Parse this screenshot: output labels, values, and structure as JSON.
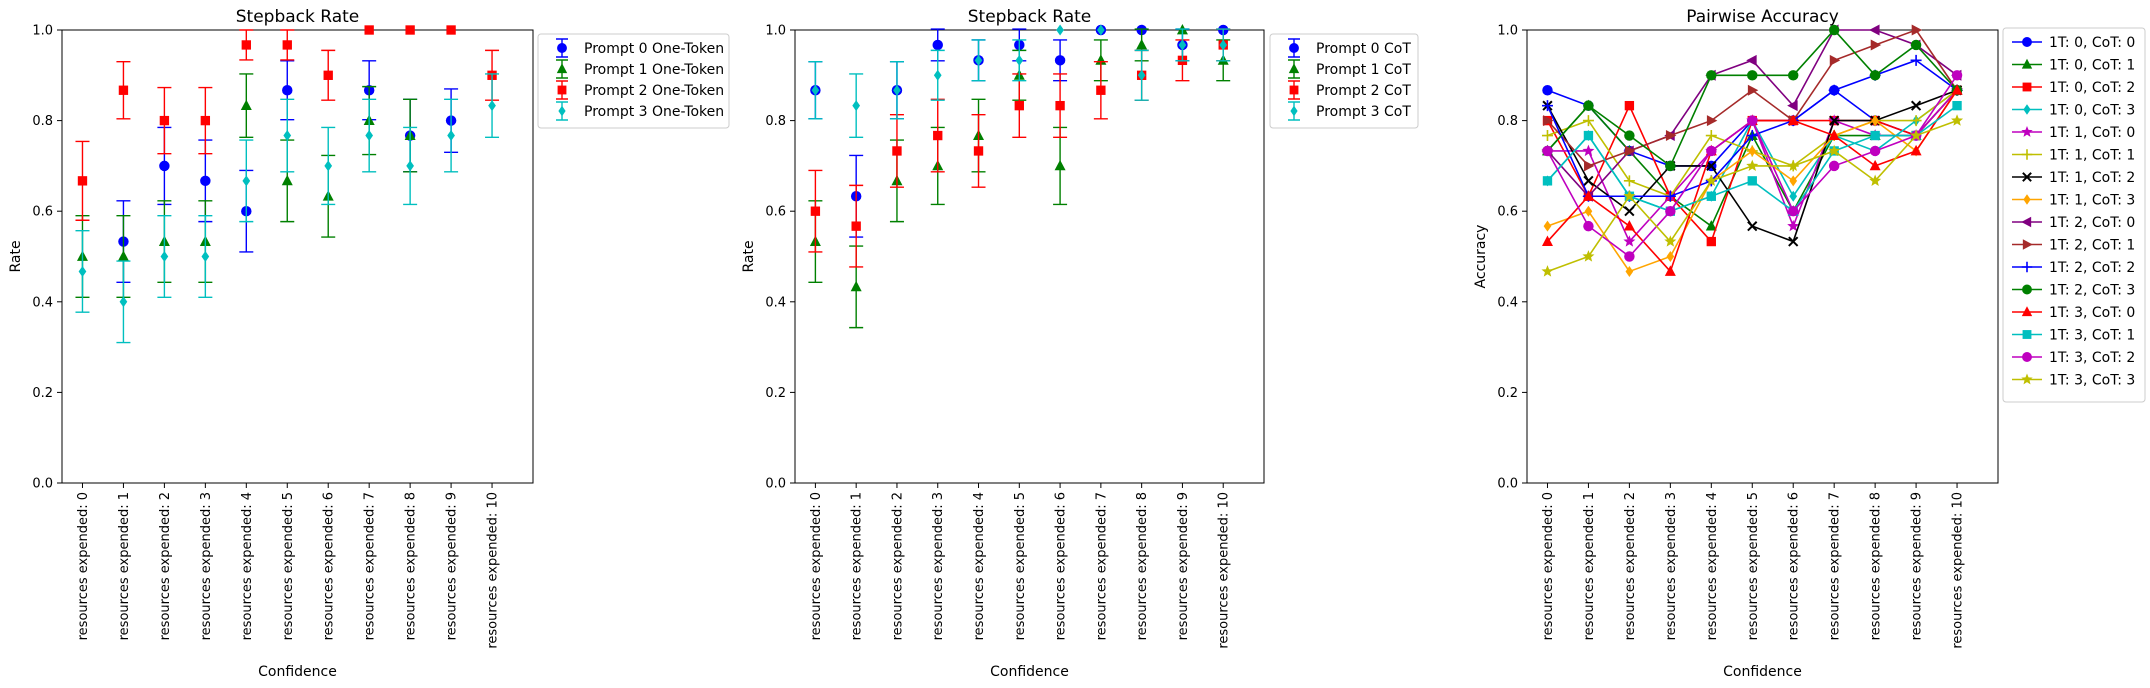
{
  "figure": {
    "background": "#ffffff"
  },
  "chart_data": [
    {
      "type": "scatter",
      "title": "Stepback Rate",
      "xlabel": "Confidence",
      "ylabel": "Rate",
      "ylim": [
        0,
        1
      ],
      "yticks": [
        "0.0",
        "0.2",
        "0.4",
        "0.6",
        "0.8",
        "1.0"
      ],
      "categories": [
        "resources expended: 0",
        "resources expended: 1",
        "resources expended: 2",
        "resources expended: 3",
        "resources expended: 4",
        "resources expended: 5",
        "resources expended: 6",
        "resources expended: 7",
        "resources expended: 8",
        "resources expended: 9",
        "resources expended: 10"
      ],
      "legend_position": "outside-right",
      "series": [
        {
          "name": "Prompt 0 One-Token",
          "color": "#0000ff",
          "marker": "circle",
          "values": [
            null,
            0.533,
            0.7,
            0.667,
            0.6,
            0.867,
            null,
            0.867,
            0.767,
            0.8,
            null
          ],
          "errors": [
            null,
            0.09,
            0.085,
            0.09,
            0.09,
            0.065,
            null,
            0.065,
            0.08,
            0.07,
            null
          ]
        },
        {
          "name": "Prompt 1 One-Token",
          "color": "#008000",
          "marker": "triangle",
          "values": [
            0.5,
            0.5,
            0.533,
            0.533,
            0.833,
            0.667,
            0.633,
            0.8,
            0.767,
            null,
            null
          ],
          "errors": [
            0.09,
            0.09,
            0.09,
            0.09,
            0.07,
            0.09,
            0.09,
            0.075,
            0.08,
            null,
            null
          ]
        },
        {
          "name": "Prompt 2 One-Token",
          "color": "#ff0000",
          "marker": "square",
          "values": [
            0.667,
            0.867,
            0.8,
            0.8,
            0.967,
            0.967,
            0.9,
            1.0,
            1.0,
            1.0,
            0.9
          ],
          "errors": [
            0.087,
            0.063,
            0.073,
            0.073,
            0.033,
            0.033,
            0.055,
            0,
            0,
            0,
            0.055
          ]
        },
        {
          "name": "Prompt 3 One-Token",
          "color": "#00bfbf",
          "marker": "diamond",
          "values": [
            0.467,
            0.4,
            0.5,
            0.5,
            0.667,
            0.767,
            0.7,
            0.767,
            0.7,
            0.767,
            0.833
          ],
          "errors": [
            0.09,
            0.09,
            0.09,
            0.09,
            0.09,
            0.08,
            0.085,
            0.08,
            0.085,
            0.08,
            0.07
          ]
        }
      ]
    },
    {
      "type": "scatter",
      "title": "Stepback Rate",
      "xlabel": "Confidence",
      "ylabel": "Rate",
      "ylim": [
        0,
        1
      ],
      "yticks": [
        "0.0",
        "0.2",
        "0.4",
        "0.6",
        "0.8",
        "1.0"
      ],
      "categories": [
        "resources expended: 0",
        "resources expended: 1",
        "resources expended: 2",
        "resources expended: 3",
        "resources expended: 4",
        "resources expended: 5",
        "resources expended: 6",
        "resources expended: 7",
        "resources expended: 8",
        "resources expended: 9",
        "resources expended: 10"
      ],
      "legend_position": "outside-right",
      "series": [
        {
          "name": "Prompt 0 CoT",
          "color": "#0000ff",
          "marker": "circle",
          "values": [
            0.867,
            0.633,
            0.867,
            0.967,
            0.933,
            0.967,
            0.933,
            1.0,
            1.0,
            0.967,
            1.0
          ],
          "errors": [
            0.063,
            0.09,
            0.063,
            0.035,
            0.045,
            0.035,
            0.045,
            0,
            0,
            0.035,
            0
          ]
        },
        {
          "name": "Prompt 1 CoT",
          "color": "#008000",
          "marker": "triangle",
          "values": [
            0.533,
            0.433,
            0.667,
            0.7,
            0.767,
            0.9,
            0.7,
            0.933,
            0.967,
            1.0,
            0.933
          ],
          "errors": [
            0.09,
            0.09,
            0.09,
            0.085,
            0.08,
            0.055,
            0.085,
            0.045,
            0.035,
            0,
            0.045
          ]
        },
        {
          "name": "Prompt 2 CoT",
          "color": "#ff0000",
          "marker": "square",
          "values": [
            0.6,
            0.567,
            0.733,
            0.767,
            0.733,
            0.833,
            0.833,
            0.867,
            0.9,
            0.933,
            0.967
          ],
          "errors": [
            0.09,
            0.09,
            0.08,
            0.08,
            0.08,
            0.07,
            0.07,
            0.063,
            0.055,
            0.045,
            0.035
          ]
        },
        {
          "name": "Prompt 3 CoT",
          "color": "#00bfbf",
          "marker": "diamond",
          "values": [
            0.867,
            0.833,
            0.867,
            0.9,
            0.933,
            0.933,
            1.0,
            1.0,
            0.9,
            0.967,
            0.967
          ],
          "errors": [
            0.063,
            0.07,
            0.063,
            0.055,
            0.045,
            0.045,
            0,
            0,
            0.055,
            0.035,
            0.035
          ]
        }
      ]
    },
    {
      "type": "line",
      "title": "Pairwise Accuracy",
      "xlabel": "Confidence",
      "ylabel": "Accuracy",
      "ylim": [
        0,
        1
      ],
      "yticks": [
        "0.0",
        "0.2",
        "0.4",
        "0.6",
        "0.8",
        "1.0"
      ],
      "categories": [
        "resources expended: 0",
        "resources expended: 1",
        "resources expended: 2",
        "resources expended: 3",
        "resources expended: 4",
        "resources expended: 5",
        "resources expended: 6",
        "resources expended: 7",
        "resources expended: 8",
        "resources expended: 9",
        "resources expended: 10"
      ],
      "legend_position": "outside-right",
      "series": [
        {
          "name": "1T: 0, CoT: 0",
          "color": "#0000ff",
          "marker": "circle",
          "values": [
            0.867,
            0.833,
            0.733,
            0.7,
            0.7,
            0.8,
            0.8,
            0.867,
            0.8,
            0.767,
            0.867
          ]
        },
        {
          "name": "1T: 0, CoT: 1",
          "color": "#008000",
          "marker": "triangle",
          "values": [
            0.733,
            0.833,
            0.733,
            0.633,
            0.567,
            0.767,
            0.6,
            0.767,
            0.767,
            0.767,
            0.867
          ]
        },
        {
          "name": "1T: 0, CoT: 2",
          "color": "#ff0000",
          "marker": "square",
          "values": [
            0.8,
            0.633,
            0.833,
            0.633,
            0.533,
            0.8,
            0.8,
            0.8,
            0.8,
            0.767,
            0.867
          ]
        },
        {
          "name": "1T: 0, CoT: 3",
          "color": "#00bfbf",
          "marker": "diamond",
          "values": [
            0.667,
            0.767,
            0.633,
            0.6,
            0.633,
            0.8,
            0.633,
            0.767,
            0.733,
            0.8,
            0.867
          ]
        },
        {
          "name": "1T: 1, CoT: 0",
          "color": "#bf00bf",
          "marker": "star",
          "values": [
            0.733,
            0.733,
            0.533,
            0.633,
            0.733,
            0.8,
            0.567,
            0.8,
            0.767,
            0.767,
            0.867
          ]
        },
        {
          "name": "1T: 1, CoT: 1",
          "color": "#bfbf00",
          "marker": "plus",
          "values": [
            0.767,
            0.8,
            0.667,
            0.633,
            0.767,
            0.733,
            0.7,
            0.767,
            0.8,
            0.8,
            0.867
          ]
        },
        {
          "name": "1T: 1, CoT: 2",
          "color": "#000000",
          "marker": "x",
          "values": [
            0.833,
            0.667,
            0.6,
            0.7,
            0.7,
            0.567,
            0.533,
            0.8,
            0.8,
            0.833,
            0.867
          ]
        },
        {
          "name": "1T: 1, CoT: 3",
          "color": "#ffa500",
          "marker": "diamond",
          "values": [
            0.567,
            0.6,
            0.467,
            0.5,
            0.667,
            0.733,
            0.667,
            0.767,
            0.8,
            0.733,
            0.867
          ]
        },
        {
          "name": "1T: 2, CoT: 0",
          "color": "#800080",
          "marker": "triangle-left",
          "values": [
            0.733,
            0.633,
            0.733,
            0.767,
            0.9,
            0.933,
            0.833,
            1.0,
            1.0,
            0.967,
            0.9
          ]
        },
        {
          "name": "1T: 2, CoT: 1",
          "color": "#a52a2a",
          "marker": "triangle-right",
          "values": [
            0.8,
            0.7,
            0.733,
            0.767,
            0.8,
            0.867,
            0.8,
            0.933,
            0.967,
            1.0,
            0.867
          ]
        },
        {
          "name": "1T: 2, CoT: 2",
          "color": "#0000ff",
          "marker": "plus",
          "values": [
            0.833,
            0.633,
            0.633,
            0.633,
            0.667,
            0.767,
            0.8,
            0.867,
            0.9,
            0.933,
            0.867
          ]
        },
        {
          "name": "1T: 2, CoT: 3",
          "color": "#008000",
          "marker": "circle",
          "values": [
            0.733,
            0.833,
            0.767,
            0.7,
            0.9,
            0.9,
            0.9,
            1.0,
            0.9,
            0.967,
            0.867
          ]
        },
        {
          "name": "1T: 3, CoT: 0",
          "color": "#ff0000",
          "marker": "triangle",
          "values": [
            0.533,
            0.633,
            0.567,
            0.467,
            0.733,
            0.8,
            0.8,
            0.767,
            0.7,
            0.733,
            0.867
          ]
        },
        {
          "name": "1T: 3, CoT: 1",
          "color": "#00bfbf",
          "marker": "square",
          "values": [
            0.667,
            0.767,
            0.633,
            0.6,
            0.633,
            0.667,
            0.6,
            0.733,
            0.767,
            0.767,
            0.833
          ]
        },
        {
          "name": "1T: 3, CoT: 2",
          "color": "#bf00bf",
          "marker": "circle",
          "values": [
            0.733,
            0.567,
            0.5,
            0.6,
            0.733,
            0.8,
            0.6,
            0.7,
            0.733,
            0.767,
            0.9
          ]
        },
        {
          "name": "1T: 3, CoT: 3",
          "color": "#bfbf00",
          "marker": "star",
          "values": [
            0.467,
            0.5,
            0.633,
            0.533,
            0.667,
            0.7,
            0.7,
            0.733,
            0.667,
            0.767,
            0.8
          ]
        }
      ]
    }
  ]
}
